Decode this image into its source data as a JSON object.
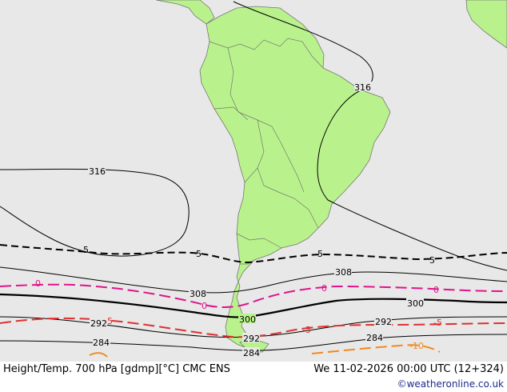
{
  "map": {
    "title": "Height/Temp. 700 hPa [gdmp][°C] CMC ENS",
    "valid_time": "We 11-02-2026 00:00 UTC (12+324)",
    "credit": "©weatheronline.co.uk",
    "region": "South America",
    "colors": {
      "ocean": "#e8e8e8",
      "land": "#b9f28c",
      "land_border": "#777777",
      "height_contour": "#000000",
      "temp_0": "#e0138c",
      "temp_minus5": "#e03030",
      "temp_minus10": "#f08a1e",
      "temp_5": "#000000",
      "credit": "#1a2a8c"
    },
    "height_labels": [
      "316",
      "316",
      "308",
      "308",
      "300",
      "300",
      "292",
      "292",
      "292",
      "284",
      "284",
      "284"
    ],
    "temp_labels": [
      "5",
      "5",
      "5",
      "5",
      "0",
      "0",
      "0",
      "0",
      "-5",
      "-5",
      "-5",
      "-10"
    ]
  }
}
